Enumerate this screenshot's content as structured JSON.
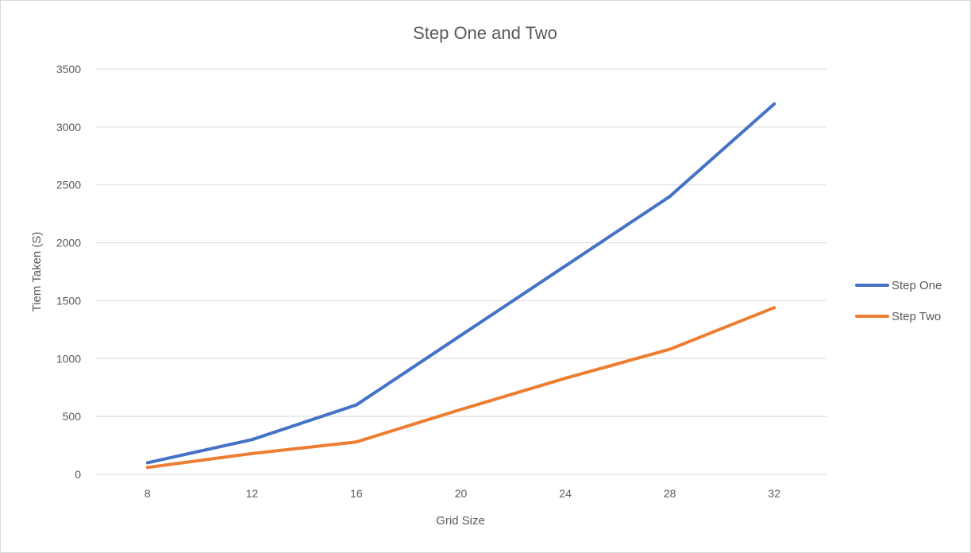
{
  "chart_data": {
    "type": "line",
    "title": "Step One and Two",
    "xlabel": "Grid Size",
    "ylabel": "Tiem Taken (S)",
    "categories": [
      "8",
      "12",
      "16",
      "20",
      "24",
      "28",
      "32"
    ],
    "ylim": [
      0,
      3500
    ],
    "yticks": [
      0,
      500,
      1000,
      1500,
      2000,
      2500,
      3000,
      3500
    ],
    "grid": true,
    "legend_position": "right",
    "series": [
      {
        "name": "Step One",
        "color": "#4472C4",
        "values": [
          100,
          300,
          600,
          1200,
          1800,
          2400,
          3200
        ]
      },
      {
        "name": "Step Two",
        "color": "#ED7D31",
        "values": [
          60,
          180,
          280,
          560,
          830,
          1080,
          1440
        ]
      }
    ]
  }
}
